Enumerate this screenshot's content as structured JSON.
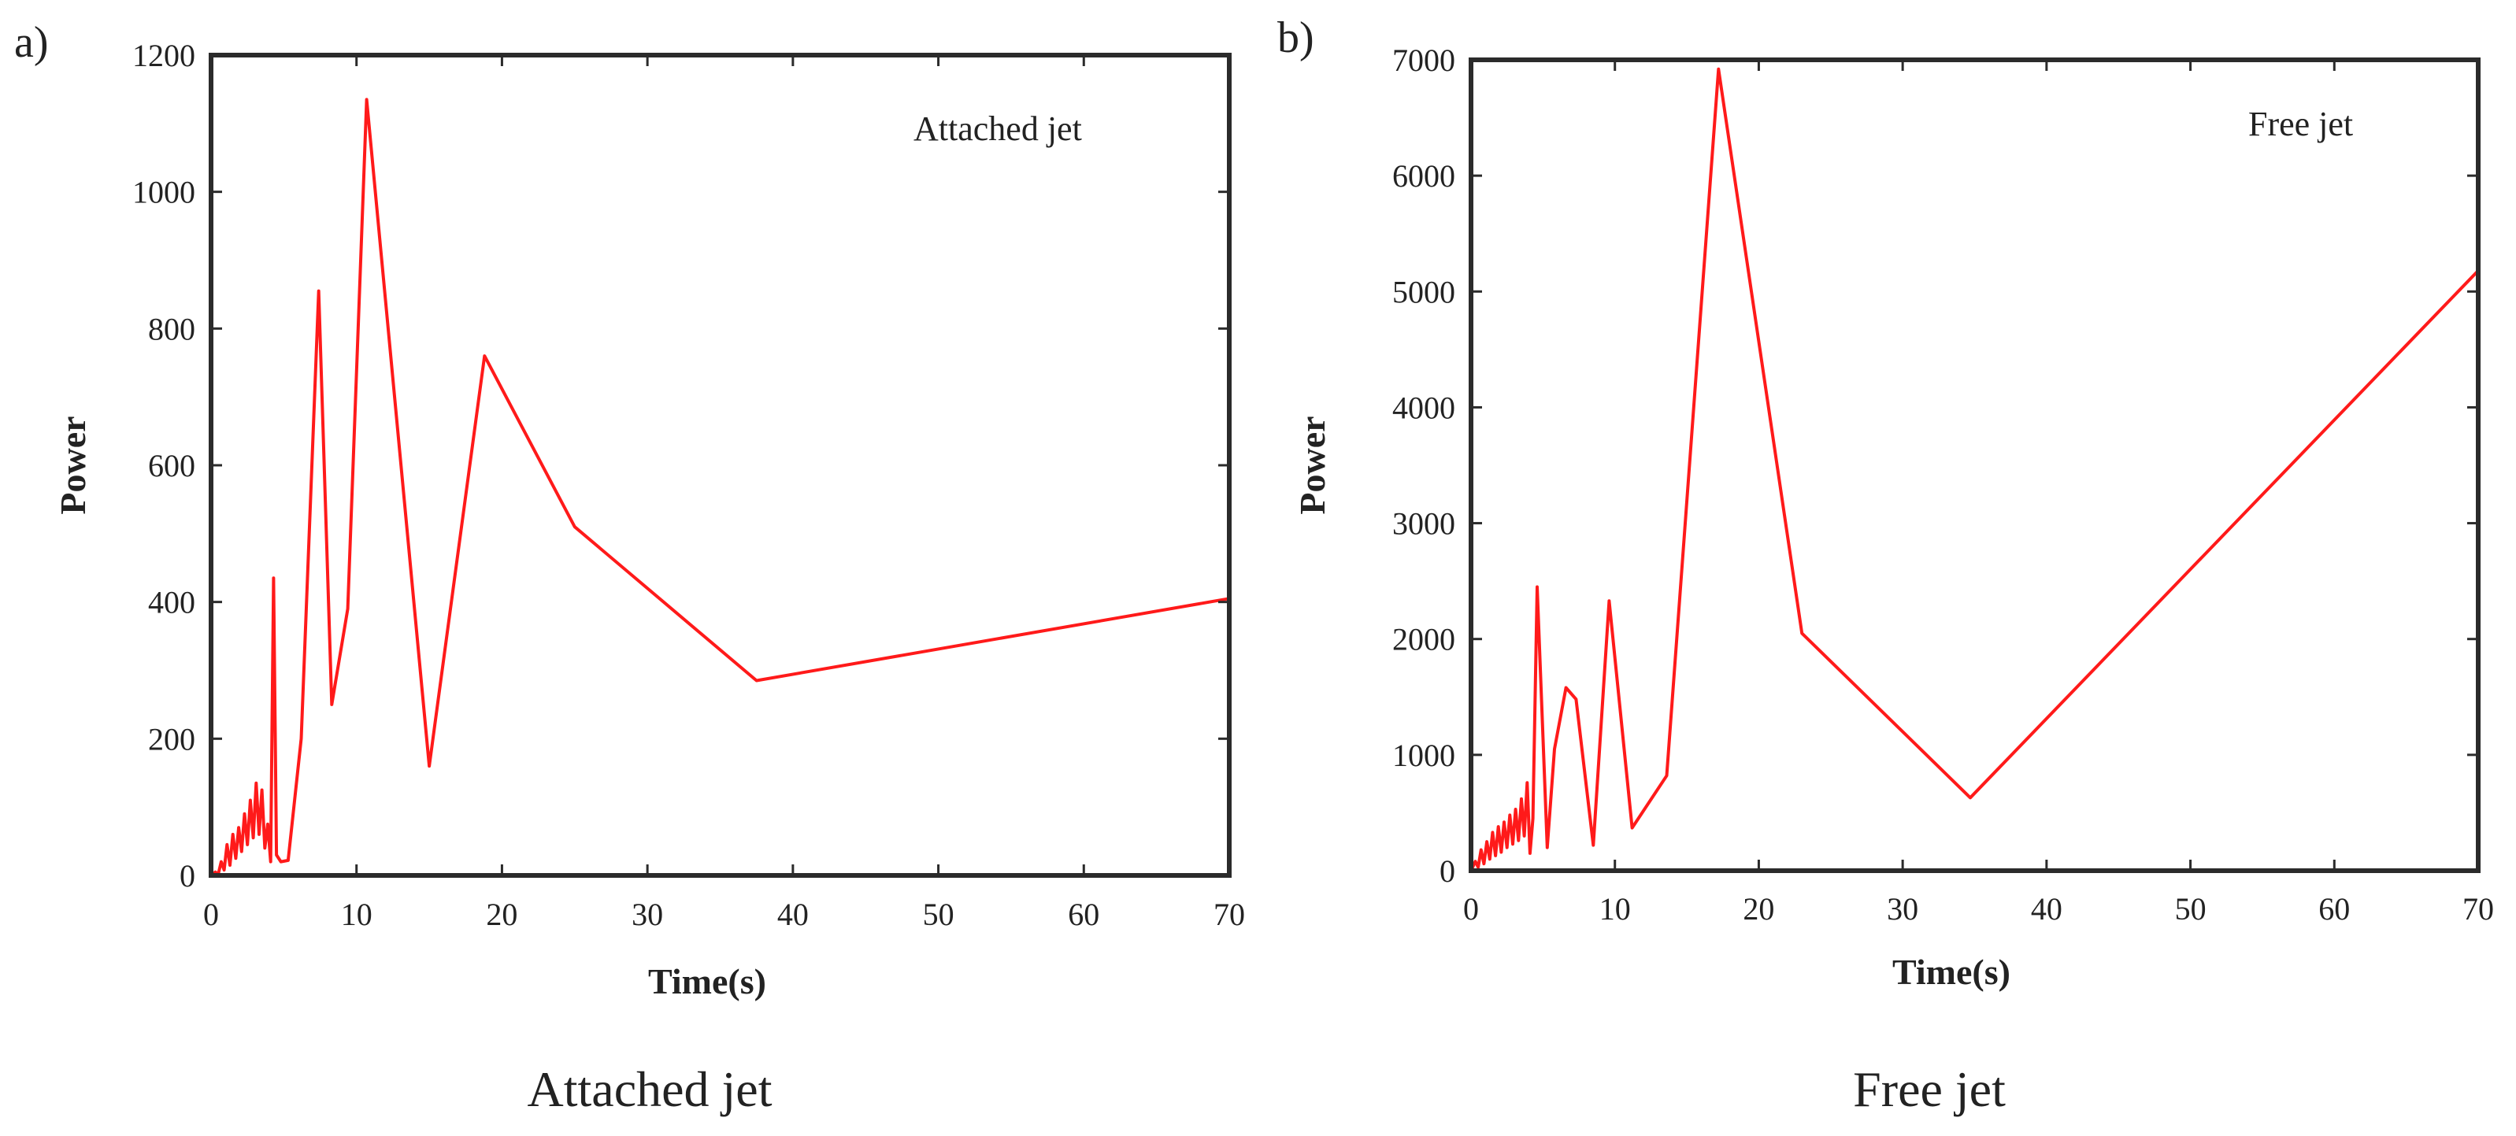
{
  "figure": {
    "panels": [
      {
        "letter": "a)",
        "caption": "Attached jet"
      },
      {
        "letter": "b)",
        "caption": "Free jet"
      }
    ]
  },
  "chart_data": [
    {
      "type": "line",
      "title": "Attached jet",
      "xlabel": "Time(s)",
      "ylabel": "Power",
      "xlim": [
        0,
        70
      ],
      "ylim": [
        0,
        1200
      ],
      "xticks": [
        0,
        10,
        20,
        30,
        40,
        50,
        60,
        70
      ],
      "yticks": [
        0,
        200,
        400,
        600,
        800,
        1000,
        1200
      ],
      "grid": false,
      "legend_position": "top-right",
      "line_color": "#ff1a1a",
      "series": [
        {
          "name": "Attached jet",
          "x": [
            0.0,
            0.3,
            0.5,
            0.7,
            0.9,
            1.1,
            1.3,
            1.5,
            1.7,
            1.9,
            2.1,
            2.3,
            2.5,
            2.7,
            2.9,
            3.1,
            3.3,
            3.5,
            3.7,
            3.9,
            4.1,
            4.3,
            4.5,
            4.8,
            5.3,
            6.2,
            7.4,
            8.3,
            9.4,
            10.7,
            15.0,
            18.8,
            25.0,
            37.5,
            70.0
          ],
          "y": [
            0,
            5,
            2,
            20,
            8,
            45,
            15,
            60,
            25,
            70,
            35,
            90,
            45,
            110,
            55,
            135,
            60,
            125,
            40,
            75,
            20,
            435,
            30,
            20,
            22,
            200,
            855,
            250,
            390,
            1135,
            160,
            760,
            510,
            285,
            405
          ]
        }
      ]
    },
    {
      "type": "line",
      "title": "Free jet",
      "xlabel": "Time(s)",
      "ylabel": "Power",
      "xlim": [
        0,
        70
      ],
      "ylim": [
        0,
        7000
      ],
      "xticks": [
        0,
        10,
        20,
        30,
        40,
        50,
        60,
        70
      ],
      "yticks": [
        0,
        1000,
        2000,
        3000,
        4000,
        5000,
        6000,
        7000
      ],
      "grid": false,
      "legend_position": "top-right",
      "line_color": "#ff1a1a",
      "series": [
        {
          "name": "Free jet",
          "x": [
            0.0,
            0.3,
            0.5,
            0.7,
            0.9,
            1.1,
            1.3,
            1.5,
            1.7,
            1.9,
            2.1,
            2.3,
            2.5,
            2.7,
            2.9,
            3.1,
            3.3,
            3.5,
            3.7,
            3.9,
            4.1,
            4.3,
            4.6,
            5.3,
            5.8,
            6.6,
            7.3,
            8.5,
            9.6,
            11.2,
            13.6,
            17.2,
            23.0,
            34.7,
            70.0
          ],
          "y": [
            0,
            80,
            30,
            180,
            60,
            250,
            100,
            330,
            130,
            380,
            160,
            420,
            200,
            480,
            230,
            530,
            260,
            620,
            300,
            760,
            150,
            450,
            2450,
            200,
            1050,
            1580,
            1480,
            220,
            2330,
            370,
            820,
            6920,
            2050,
            630,
            5180
          ]
        }
      ]
    }
  ]
}
